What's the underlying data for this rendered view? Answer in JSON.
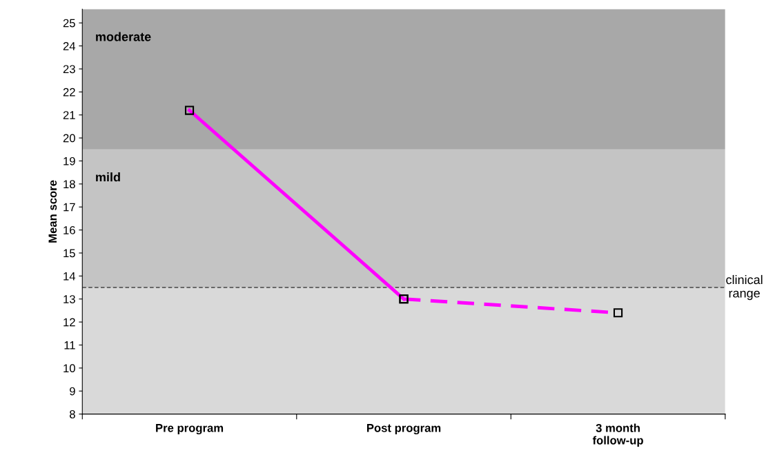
{
  "chart_data": {
    "type": "line",
    "ylabel": "Mean score",
    "categories": [
      "Pre program",
      "Post program",
      "3 month\nfollow-up"
    ],
    "series": [
      {
        "color": "#ff00ff",
        "values": [
          21.2,
          13.0,
          null
        ],
        "line_style": "solid"
      },
      {
        "color": "#ff00ff",
        "values": [
          null,
          13.0,
          12.4
        ],
        "line_style": "dashed"
      }
    ],
    "marker": "square",
    "ylim": [
      8,
      25.6
    ],
    "yticks": [
      8,
      9,
      10,
      11,
      12,
      13,
      14,
      15,
      16,
      17,
      18,
      19,
      20,
      21,
      22,
      23,
      24,
      25
    ],
    "bands": [
      {
        "axis": "y",
        "from": 8,
        "to": 13.5,
        "color": "#d9d9d9"
      },
      {
        "axis": "y",
        "from": 13.5,
        "to": 19.5,
        "label": "mild",
        "color": "#c4c4c4"
      },
      {
        "axis": "y",
        "from": 19.5,
        "to": 25.6,
        "label": "moderate",
        "color": "#a8a8a8"
      }
    ],
    "ref_lines": [
      {
        "axis": "y",
        "value": 13.5,
        "label": "clinical\nrange",
        "color": "#000000",
        "line_style": "dashed"
      }
    ],
    "grid": false,
    "legend": false
  }
}
